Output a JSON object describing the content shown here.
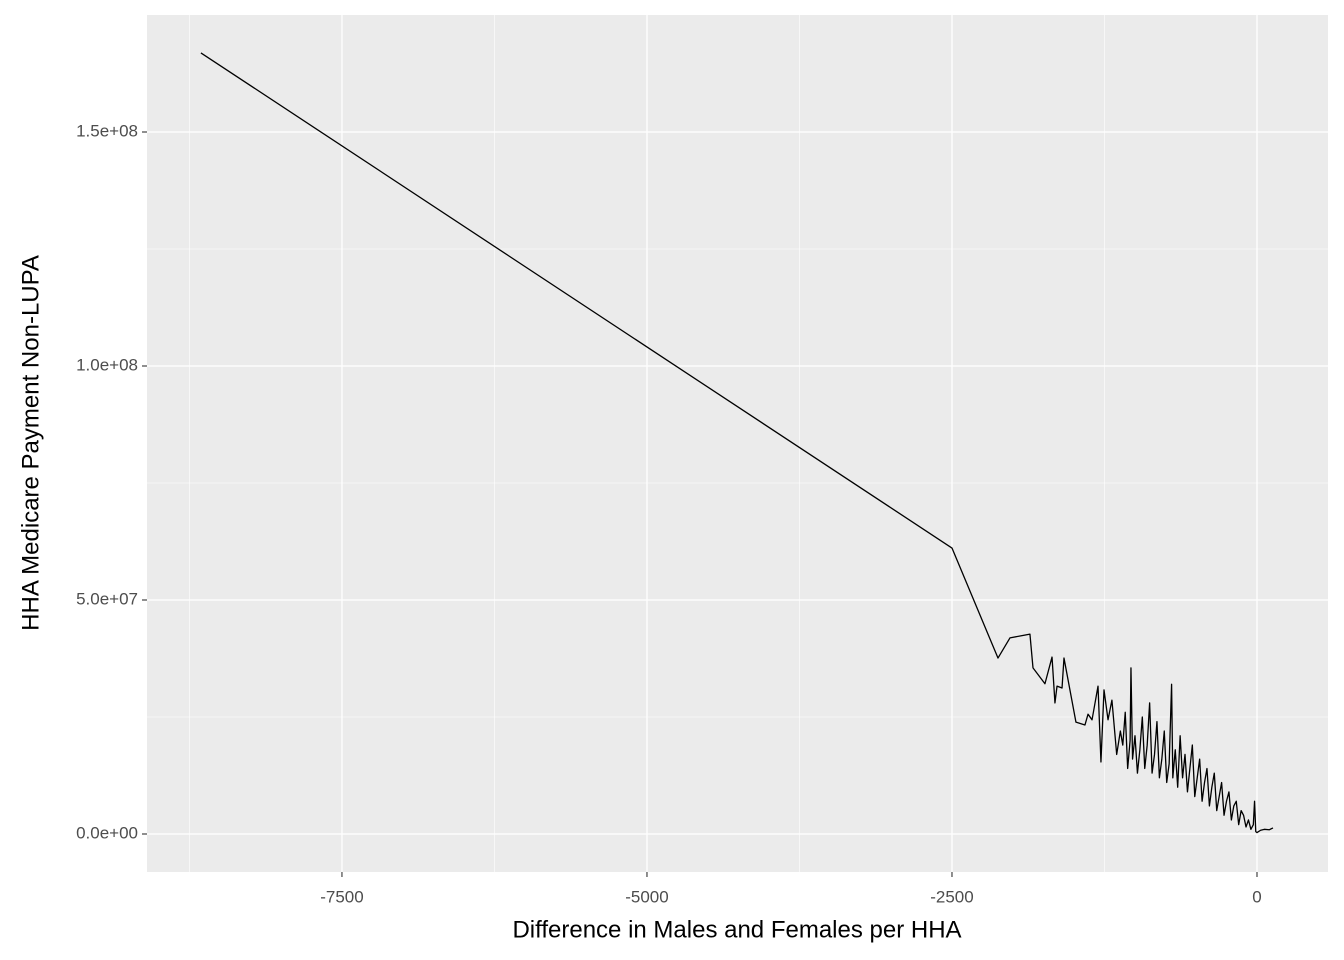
{
  "chart_data": {
    "type": "line",
    "x_label": "Difference in Males and Females per HHA",
    "y_label": "HHA Medicare Payment Non-LUPA",
    "x": [
      -8656,
      -2500,
      -2123,
      -2025,
      -1861,
      -1836,
      -1738,
      -1680,
      -1656,
      -1639,
      -1598,
      -1582,
      -1484,
      -1410,
      -1385,
      -1352,
      -1303,
      -1279,
      -1254,
      -1221,
      -1189,
      -1150,
      -1120,
      -1100,
      -1080,
      -1060,
      -1040,
      -1033,
      -1020,
      -1000,
      -980,
      -960,
      -940,
      -920,
      -900,
      -880,
      -860,
      -840,
      -820,
      -800,
      -780,
      -760,
      -740,
      -720,
      -700,
      -690,
      -670,
      -650,
      -630,
      -610,
      -590,
      -570,
      -550,
      -530,
      -510,
      -490,
      -470,
      -450,
      -430,
      -410,
      -390,
      -370,
      -350,
      -330,
      -310,
      -290,
      -270,
      -250,
      -230,
      -210,
      -190,
      -170,
      -150,
      -130,
      -110,
      -90,
      -70,
      -50,
      -30,
      -20,
      -10,
      0,
      30,
      60,
      100,
      131
    ],
    "values": [
      166900000,
      61100000,
      37600000,
      41900000,
      42700000,
      35500000,
      32100000,
      37800000,
      28000000,
      31600000,
      31200000,
      37600000,
      23900000,
      23300000,
      25600000,
      24400000,
      31600000,
      15400000,
      30800000,
      24400000,
      28600000,
      17000000,
      22000000,
      19000000,
      26000000,
      14000000,
      20000000,
      35500000,
      16000000,
      21000000,
      13000000,
      18000000,
      25000000,
      14000000,
      19000000,
      28000000,
      13000000,
      17000000,
      24000000,
      12000000,
      16000000,
      22000000,
      11000000,
      15000000,
      32000000,
      12000000,
      18000000,
      10000000,
      21000000,
      12000000,
      17000000,
      9000000,
      14000000,
      19000000,
      8000000,
      12000000,
      16000000,
      7000000,
      11000000,
      14000000,
      6000000,
      10000000,
      13000000,
      5000000,
      8000000,
      11000000,
      4000000,
      7000000,
      9000000,
      3000000,
      6000000,
      7000000,
      2000000,
      5000000,
      4000000,
      1500000,
      3000000,
      1000000,
      2000000,
      7000000,
      500000,
      300000,
      800000,
      1000000,
      900000,
      1300000
    ],
    "color": "#000000",
    "xlim": [
      -9098,
      582
    ],
    "ylim": [
      -8120000,
      175000000
    ],
    "xticks": [
      -7500,
      -5000,
      -2500,
      0
    ],
    "yticks": [
      {
        "value": 0,
        "label": "0.0e+00"
      },
      {
        "value": 50000000,
        "label": "5.0e+07"
      },
      {
        "value": 100000000,
        "label": "1.0e+08"
      },
      {
        "value": 150000000,
        "label": "1.5e+08"
      }
    ],
    "xminor": [
      -8750,
      -6250,
      -3750,
      -1250
    ],
    "yminor": [
      25000000,
      75000000,
      125000000
    ],
    "grid": true
  }
}
